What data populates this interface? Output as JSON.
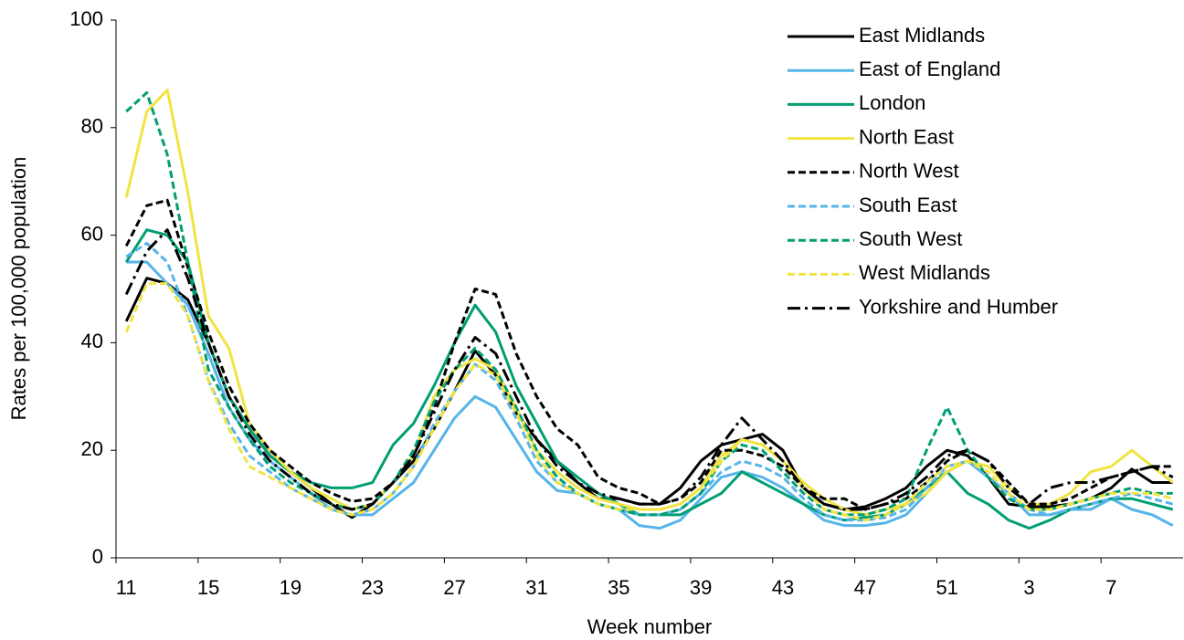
{
  "chart_data": {
    "type": "line",
    "x_label": "Week number",
    "y_label": "Rates per 100,000 population",
    "categories": [
      "11",
      null,
      null,
      null,
      "15",
      null,
      null,
      null,
      "19",
      null,
      null,
      null,
      "23",
      null,
      null,
      null,
      "27",
      null,
      null,
      null,
      "31",
      null,
      null,
      null,
      "35",
      null,
      null,
      null,
      "39",
      null,
      null,
      null,
      "43",
      null,
      null,
      null,
      "47",
      null,
      null,
      null,
      "51",
      null,
      null,
      null,
      "3",
      null,
      null,
      null,
      "7",
      null,
      null,
      null
    ],
    "ylim": [
      0,
      100
    ],
    "yticks": [
      0,
      20,
      40,
      60,
      80,
      100
    ],
    "legend": "top-right",
    "series": [
      {
        "name": "East Midlands",
        "color": "#000000",
        "dash": "solid",
        "values": [
          44,
          52,
          51,
          48,
          40,
          30,
          24,
          19,
          16,
          13,
          10,
          7.5,
          10,
          14,
          18,
          24,
          31,
          38.5,
          34,
          27,
          22,
          18,
          14,
          11,
          11,
          10,
          10,
          13,
          18,
          21,
          22,
          23,
          20,
          13,
          10,
          9,
          9.5,
          11,
          13,
          17,
          20,
          19,
          15,
          10,
          9.5,
          9.5,
          10,
          11,
          13,
          16.5,
          14,
          14
        ]
      },
      {
        "name": "East of England",
        "color": "#56b4e9",
        "dash": "solid",
        "values": [
          55,
          55,
          51,
          47,
          38,
          28,
          22,
          18,
          15,
          12,
          9,
          8,
          8,
          11,
          14,
          20,
          26,
          30,
          28,
          22,
          16,
          12.5,
          12,
          10,
          9,
          6,
          5.5,
          7,
          11,
          15,
          16,
          15,
          13,
          10,
          7,
          6,
          6,
          6.5,
          8,
          12,
          16,
          18,
          15,
          12,
          8,
          8,
          9,
          9,
          11,
          9,
          8,
          6
        ]
      },
      {
        "name": "London",
        "color": "#009e73",
        "dash": "solid",
        "values": [
          55,
          61,
          60,
          55,
          40,
          30,
          24,
          19,
          16,
          14,
          13,
          13,
          14,
          21,
          25,
          32,
          40,
          47,
          42,
          32,
          25,
          18,
          15,
          12,
          10,
          8,
          8,
          8,
          10,
          12,
          16,
          14,
          12,
          10,
          8,
          7,
          7.5,
          8,
          10,
          13,
          16,
          12,
          10,
          7,
          5.5,
          7,
          9,
          10,
          11,
          11,
          10,
          9
        ]
      },
      {
        "name": "North East",
        "color": "#f0e442",
        "dash": "solid",
        "values": [
          67,
          83,
          87,
          68,
          45,
          39,
          25,
          20,
          16,
          13,
          11,
          9,
          10,
          14,
          19,
          30,
          35,
          37,
          35,
          28,
          20,
          16,
          13,
          11,
          10,
          9,
          9,
          10,
          13,
          19,
          22,
          21,
          18,
          14,
          11,
          9,
          8,
          9,
          10,
          12,
          16,
          18,
          17,
          13,
          10,
          10,
          12,
          16,
          17,
          20,
          17,
          14
        ]
      },
      {
        "name": "North West",
        "color": "#000000",
        "dash": "dashed",
        "values": [
          58,
          65.5,
          66.5,
          54,
          42,
          32,
          25,
          20,
          17,
          14,
          12,
          10.5,
          11,
          14,
          19,
          28,
          40,
          50,
          49,
          38,
          30,
          24,
          21,
          15,
          13,
          12,
          10,
          11,
          14,
          20,
          20,
          19,
          17,
          13,
          11,
          11,
          9,
          10,
          11,
          14,
          18,
          20,
          18,
          14,
          10,
          10,
          11,
          13,
          15,
          16,
          17,
          17
        ]
      },
      {
        "name": "South East",
        "color": "#56b4e9",
        "dash": "dashed",
        "values": [
          56,
          58.5,
          55,
          45,
          33,
          25,
          19,
          16,
          13,
          11,
          9,
          8,
          9,
          12,
          17,
          25,
          31,
          36,
          33,
          26,
          18,
          14,
          12,
          10,
          9,
          8,
          8,
          9,
          12,
          16,
          18,
          17,
          15,
          11,
          8,
          7,
          7,
          7.5,
          9,
          13,
          17,
          18,
          15,
          12,
          9,
          8,
          9,
          10,
          11,
          12,
          11,
          10
        ]
      },
      {
        "name": "South West",
        "color": "#009e73",
        "dash": "dashed",
        "values": [
          83,
          86.5,
          75,
          55,
          35,
          28,
          22,
          17,
          14,
          12,
          10,
          9,
          10,
          14,
          20,
          29,
          35,
          39,
          35,
          28,
          20,
          15,
          12,
          10,
          9,
          8,
          8,
          9,
          12,
          18,
          21,
          20,
          16,
          12,
          9,
          8,
          8,
          9,
          11,
          20,
          28,
          20,
          15,
          11,
          9,
          9,
          10,
          11,
          12,
          13,
          12,
          12
        ]
      },
      {
        "name": "West Midlands",
        "color": "#f0e442",
        "dash": "dashed",
        "values": [
          42,
          51,
          51,
          45,
          33,
          24,
          17,
          15,
          13,
          11,
          9,
          8,
          9,
          12,
          17,
          24,
          31,
          36,
          34,
          27,
          19,
          14,
          12,
          10,
          9,
          9,
          9,
          10,
          13,
          18,
          22,
          21,
          18,
          13,
          9,
          8,
          7,
          8,
          10,
          14,
          17,
          18,
          16,
          12,
          9,
          9,
          10,
          11,
          12,
          12,
          12,
          11
        ]
      },
      {
        "name": "Yorkshire and Humber",
        "color": "#000000",
        "dash": "dashdot",
        "values": [
          49,
          57,
          61,
          52,
          40,
          30,
          23,
          18,
          15,
          12,
          10,
          9,
          10,
          14,
          19,
          27,
          35,
          41,
          38,
          30,
          22,
          17,
          14,
          12,
          11,
          10,
          10,
          11,
          15,
          21,
          26,
          22,
          18,
          13,
          10,
          9,
          9,
          10,
          12,
          15,
          19,
          20,
          18,
          13,
          10,
          13,
          14,
          14,
          15,
          16,
          17,
          15
        ]
      }
    ]
  }
}
